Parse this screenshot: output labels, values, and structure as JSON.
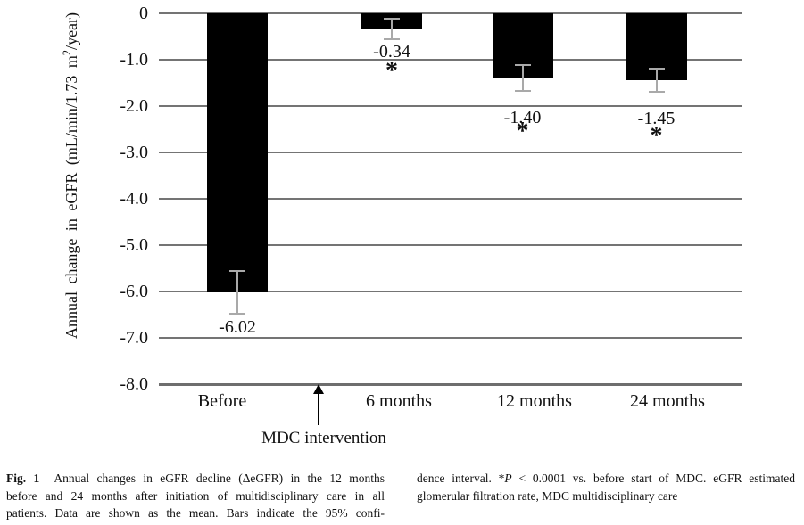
{
  "chart_data": {
    "type": "bar",
    "title": "",
    "categories": [
      "Before",
      "6 months",
      "12 months",
      "24 months"
    ],
    "values": [
      -6.02,
      -0.34,
      -1.4,
      -1.45
    ],
    "value_labels": [
      "-6.02",
      "-0.34",
      "-1.40",
      "-1.45"
    ],
    "error_95ci": [
      0.47,
      0.22,
      0.28,
      0.25
    ],
    "significance": [
      false,
      true,
      true,
      true
    ],
    "significance_symbol": "*",
    "xlabel": "",
    "ylabel": "Annual change in eGFR (mL/min/1.73 m2/year)",
    "ylabel_segments": [
      {
        "t": "Annual change in eGFR (mL/min/1.73 m"
      },
      {
        "t": "2",
        "sup": true
      },
      {
        "t": "/year)"
      }
    ],
    "ylim": [
      -8,
      0
    ],
    "ytick_labels": [
      "0",
      "-1.0",
      "-2.0",
      "-3.0",
      "-4.0",
      "-5.0",
      "-6.0",
      "-7.0",
      "-8.0"
    ],
    "ytick_values": [
      0,
      -1,
      -2,
      -3,
      -4,
      -5,
      -6,
      -7,
      -8
    ],
    "grid": true,
    "legend": false,
    "bar_color": "#000000",
    "error_bar_color": "#a9a9a9",
    "gridline_color": "#747474",
    "axis_color": "#6e6e6e",
    "annotation": {
      "arrow_label": "MDC intervention"
    }
  },
  "caption": {
    "left_lines": [
      [
        {
          "t": "Fig. 1",
          "b": true
        },
        {
          "t": "  Annual changes in eGFR decline (ΔeGFR) in the 12 months"
        }
      ],
      [
        {
          "t": "before and 24 months after initiation of multidisciplinary care in all"
        }
      ],
      [
        {
          "t": "patients. Data are shown as the mean. Bars indicate the 95% confi-"
        }
      ]
    ],
    "right_lines": [
      [
        {
          "t": "dence interval. *"
        },
        {
          "t": "P",
          "i": true
        },
        {
          "t": " < 0.0001 vs. before start of MDC. eGFR estimated"
        }
      ],
      [
        {
          "t": "glomerular filtration rate, MDC multidisciplinary care"
        }
      ]
    ]
  }
}
